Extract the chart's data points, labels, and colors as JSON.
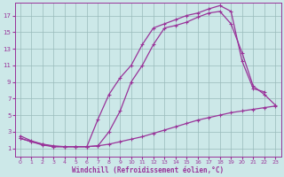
{
  "bg_color": "#cce8e8",
  "line_color": "#993399",
  "grid_color": "#99bbbb",
  "xlabel": "Windchill (Refroidissement éolien,°C)",
  "xlim": [
    -0.5,
    23.5
  ],
  "ylim": [
    0,
    18.5
  ],
  "xticks": [
    0,
    1,
    2,
    3,
    4,
    5,
    6,
    7,
    8,
    9,
    10,
    11,
    12,
    13,
    14,
    15,
    16,
    17,
    18,
    19,
    20,
    21,
    22,
    23
  ],
  "yticks": [
    1,
    3,
    5,
    7,
    9,
    11,
    13,
    15,
    17
  ],
  "curve1_x": [
    0,
    1,
    2,
    3,
    4,
    5,
    6,
    7,
    8,
    9,
    10,
    11,
    12,
    13,
    14,
    15,
    16,
    17,
    18,
    19,
    20,
    21,
    22,
    23
  ],
  "curve1_y": [
    2.2,
    1.8,
    1.5,
    1.3,
    1.2,
    1.2,
    1.2,
    1.3,
    1.5,
    1.8,
    2.1,
    2.4,
    2.8,
    3.2,
    3.6,
    4.0,
    4.4,
    4.7,
    5.0,
    5.3,
    5.5,
    5.7,
    5.9,
    6.1
  ],
  "curve2_x": [
    0,
    1,
    2,
    3,
    4,
    5,
    6,
    7,
    8,
    9,
    10,
    11,
    12,
    13,
    14,
    15,
    16,
    17,
    18,
    19,
    20,
    21,
    22,
    23
  ],
  "curve2_y": [
    2.2,
    1.8,
    1.4,
    1.2,
    1.2,
    1.2,
    1.2,
    1.3,
    3.0,
    5.5,
    9.0,
    11.0,
    13.5,
    15.5,
    15.8,
    16.2,
    16.8,
    17.3,
    17.5,
    16.0,
    12.5,
    8.5,
    7.5,
    6.2
  ],
  "curve3_x": [
    0,
    1,
    2,
    3,
    4,
    5,
    6,
    7,
    8,
    9,
    10,
    11,
    12,
    13,
    14,
    15,
    16,
    17,
    18,
    19,
    20,
    21,
    22,
    23
  ],
  "curve3_y": [
    2.5,
    1.9,
    1.5,
    1.2,
    1.2,
    1.2,
    1.2,
    4.5,
    7.5,
    9.5,
    11.0,
    13.5,
    15.5,
    16.0,
    16.5,
    17.0,
    17.3,
    17.8,
    18.2,
    17.5,
    11.5,
    8.2,
    7.8,
    null
  ]
}
